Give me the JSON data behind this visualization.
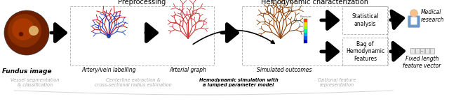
{
  "title_preprocessing": "Preprocessing",
  "title_hemo": "Hemodynamic characterization",
  "label_fundus": "Fundus image",
  "label_artery": "Artery/vein labelling",
  "label_arterial": "Arterial graph",
  "label_simulated": "Simulated outcomes",
  "label_statistical": "Statistical\nanalysis",
  "label_bag": "Bag of\nHemodynamic\nFeatures",
  "label_medical": "Medical\nresearch",
  "label_fixed": "Fixed length\nfeature vector",
  "sub_vessel": "Vessel segmentation\n& classification",
  "sub_centerline": "Centerline extraction &\ncross-sectional radius estimation",
  "sub_hemo_sim": "Hemodynamic simulation with\na lumped parameter model",
  "sub_optional": "Optional feature\nrepresentation",
  "bg_color": "#ffffff",
  "dashed_box_color": "#aaaaaa",
  "sub_text_color": "#aaaaaa",
  "cbar_colors": [
    "#0000cc",
    "#0055ff",
    "#00aaff",
    "#00ffaa",
    "#aaff00",
    "#ffdd00",
    "#ff4400"
  ]
}
